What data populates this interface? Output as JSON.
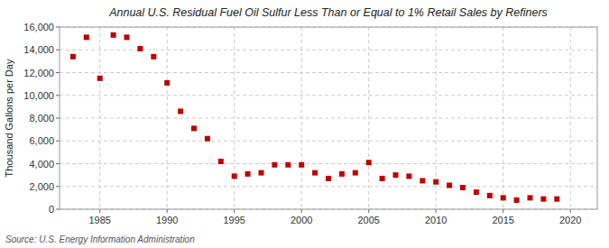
{
  "chart_data": {
    "type": "scatter",
    "title": "Annual U.S. Residual Fuel Oil Sulfur Less Than or Equal to 1% Retail Sales by Refiners",
    "ylabel": "Thousand Gallons per Day",
    "annotations": [
      "Source: U.S. Energy Information Administration"
    ],
    "x": [
      1983,
      1984,
      1985,
      1986,
      1987,
      1988,
      1989,
      1990,
      1991,
      1992,
      1993,
      1994,
      1995,
      1996,
      1997,
      1998,
      1999,
      2000,
      2001,
      2002,
      2003,
      2004,
      2005,
      2006,
      2007,
      2008,
      2009,
      2010,
      2011,
      2012,
      2013,
      2014,
      2015,
      2016,
      2017,
      2018,
      2019
    ],
    "values": [
      13400,
      15100,
      11500,
      15300,
      15100,
      14100,
      13400,
      11100,
      8600,
      7100,
      6200,
      4200,
      2900,
      3100,
      3200,
      3900,
      3900,
      3900,
      3200,
      2700,
      3100,
      3200,
      4100,
      2700,
      3000,
      2900,
      2500,
      2400,
      2100,
      1900,
      1500,
      1200,
      1000,
      800,
      1000,
      900,
      900
    ],
    "color": "#c00000",
    "marker": "square",
    "xlim": [
      1982,
      2022
    ],
    "ylim": [
      0,
      16000
    ],
    "xticks": [
      1985,
      1990,
      1995,
      2000,
      2005,
      2010,
      2015,
      2020
    ],
    "yticks": [
      0,
      {
        "value": 2000,
        "label": "2,000"
      },
      {
        "value": 4000,
        "label": "4,000"
      },
      {
        "value": 6000,
        "label": "6,000"
      },
      {
        "value": 8000,
        "label": "8,000"
      },
      {
        "value": 10000,
        "label": "10,000"
      },
      {
        "value": 12000,
        "label": "12,000"
      },
      {
        "value": 14000,
        "label": "14,000"
      },
      {
        "value": 16000,
        "label": "16,000"
      }
    ],
    "grid": true
  }
}
